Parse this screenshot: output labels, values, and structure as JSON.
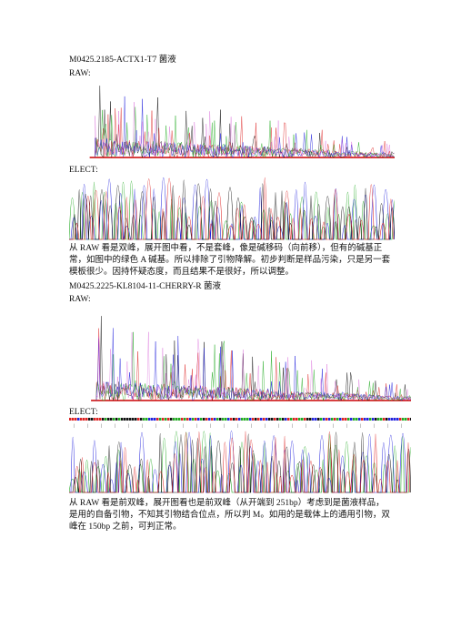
{
  "section1": {
    "title": "M0425.2185-ACTX1-T7 菌液",
    "raw_label": "RAW:",
    "elect_label": "ELECT:",
    "note": "从 RAW 看是双峰，展开图中看，不是套峰，像是碱移码（向前移），但有的碱基正常，如图中的绿色 A 碱基。所以排除了引物降解。初步判断是样品污染，只是另一套模板很少。因持怀疑态度，而且结果不是很好，所以调整。"
  },
  "section2": {
    "title": "M0425.2225-KL8104-11-CHERRY-R 菌液",
    "raw_label": "RAW:",
    "elect_label": "ELECT:",
    "note": "从 RAW 看是前双峰，展开图看也是前双峰（从开端到 251bp）考虑到是菌液样品，是用的自备引物，不知其引物结合位点，所以判 M。如用的是载体上的通用引物，双峰在 150bp 之前，可判正常。"
  },
  "colors": {
    "A": "#22aa22",
    "C": "#2222dd",
    "G": "#111111",
    "T": "#dd2222",
    "extra": "#cc33cc",
    "baseline": "#cc0000"
  }
}
